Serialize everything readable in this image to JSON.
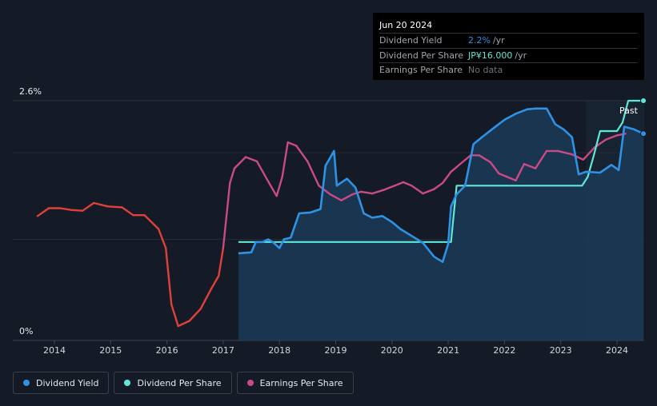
{
  "tooltip": {
    "date": "Jun 20 2024",
    "rows": [
      {
        "label": "Dividend Yield",
        "value": "2.2%",
        "unit": "/yr"
      },
      {
        "label": "Dividend Per Share",
        "value": "JP¥16.000",
        "unit": "/yr"
      },
      {
        "label": "Earnings Per Share",
        "value": "No data",
        "unit": ""
      }
    ]
  },
  "legend": [
    {
      "label": "Dividend Yield",
      "color": "#2e93e6"
    },
    {
      "label": "Dividend Per Share",
      "color": "#5ee8d8"
    },
    {
      "label": "Earnings Per Share",
      "color": "#c94a86"
    }
  ],
  "chart_data": {
    "type": "line",
    "title": "",
    "y_tick_labels": [
      "2.6%",
      "0%"
    ],
    "x_ticks": [
      2014,
      2015,
      2016,
      2017,
      2018,
      2019,
      2020,
      2021,
      2022,
      2023,
      2024
    ],
    "xlim": [
      2013.3,
      2024.47
    ],
    "ylim": [
      0,
      2.6
    ],
    "past_label": "Past",
    "past_start": 2023.45,
    "colors": {
      "yield": "#2e93e6",
      "dps": "#5ee8d8",
      "eps_up": "#c94a86",
      "eps_down": "#e0403c",
      "grid": "#2d333d",
      "axis": "#3f4650",
      "area": "#1b3a57"
    },
    "series": [
      {
        "name": "Dividend Yield",
        "unit": "%",
        "points": [
          [
            2017.27,
            0.84
          ],
          [
            2017.5,
            0.85
          ],
          [
            2017.58,
            0.97
          ],
          [
            2017.7,
            0.97
          ],
          [
            2017.8,
            1.0
          ],
          [
            2017.9,
            0.96
          ],
          [
            2018.0,
            0.9
          ],
          [
            2018.08,
            1.0
          ],
          [
            2018.2,
            1.02
          ],
          [
            2018.35,
            1.3
          ],
          [
            2018.55,
            1.31
          ],
          [
            2018.73,
            1.35
          ],
          [
            2018.82,
            1.85
          ],
          [
            2018.97,
            2.02
          ],
          [
            2019.02,
            1.62
          ],
          [
            2019.2,
            1.7
          ],
          [
            2019.35,
            1.6
          ],
          [
            2019.5,
            1.3
          ],
          [
            2019.65,
            1.25
          ],
          [
            2019.83,
            1.27
          ],
          [
            2020.0,
            1.2
          ],
          [
            2020.15,
            1.12
          ],
          [
            2020.35,
            1.04
          ],
          [
            2020.55,
            0.96
          ],
          [
            2020.75,
            0.8
          ],
          [
            2020.9,
            0.74
          ],
          [
            2021.0,
            0.95
          ],
          [
            2021.05,
            1.38
          ],
          [
            2021.15,
            1.52
          ],
          [
            2021.3,
            1.62
          ],
          [
            2021.45,
            2.1
          ],
          [
            2021.6,
            2.18
          ],
          [
            2021.8,
            2.28
          ],
          [
            2022.0,
            2.38
          ],
          [
            2022.2,
            2.45
          ],
          [
            2022.4,
            2.5
          ],
          [
            2022.55,
            2.51
          ],
          [
            2022.75,
            2.51
          ],
          [
            2022.9,
            2.33
          ],
          [
            2023.05,
            2.27
          ],
          [
            2023.2,
            2.18
          ],
          [
            2023.32,
            1.75
          ],
          [
            2023.45,
            1.78
          ],
          [
            2023.7,
            1.77
          ],
          [
            2023.9,
            1.86
          ],
          [
            2024.03,
            1.8
          ],
          [
            2024.13,
            2.3
          ],
          [
            2024.3,
            2.27
          ],
          [
            2024.47,
            2.22
          ]
        ]
      },
      {
        "name": "Dividend Per Share",
        "unit": "JP¥",
        "points": [
          [
            2017.27,
            0.97
          ],
          [
            2020.05,
            0.97
          ],
          [
            2020.1,
            0.97
          ],
          [
            2021.05,
            0.97
          ],
          [
            2021.15,
            1.62
          ],
          [
            2021.5,
            1.62
          ],
          [
            2022.0,
            1.62
          ],
          [
            2022.5,
            1.62
          ],
          [
            2023.0,
            1.62
          ],
          [
            2023.38,
            1.62
          ],
          [
            2023.48,
            1.72
          ],
          [
            2023.58,
            1.95
          ],
          [
            2023.7,
            2.25
          ],
          [
            2023.82,
            2.25
          ],
          [
            2024.0,
            2.25
          ],
          [
            2024.1,
            2.35
          ],
          [
            2024.2,
            2.6
          ],
          [
            2024.47,
            2.6
          ]
        ]
      },
      {
        "name": "Earnings Per Share",
        "unit": "JP¥",
        "points": [
          [
            2013.7,
            1.27
          ],
          [
            2013.9,
            1.36
          ],
          [
            2014.1,
            1.36
          ],
          [
            2014.3,
            1.34
          ],
          [
            2014.5,
            1.33
          ],
          [
            2014.7,
            1.42
          ],
          [
            2014.95,
            1.38
          ],
          [
            2015.2,
            1.37
          ],
          [
            2015.4,
            1.28
          ],
          [
            2015.6,
            1.28
          ],
          [
            2015.85,
            1.12
          ],
          [
            2015.98,
            0.9
          ],
          [
            2016.08,
            0.25
          ],
          [
            2016.2,
            0.0
          ],
          [
            2016.4,
            0.06
          ],
          [
            2016.6,
            0.2
          ],
          [
            2016.78,
            0.42
          ],
          [
            2016.92,
            0.58
          ],
          [
            2017.0,
            0.9
          ],
          [
            2017.12,
            1.65
          ],
          [
            2017.2,
            1.82
          ],
          [
            2017.4,
            1.95
          ],
          [
            2017.6,
            1.9
          ],
          [
            2017.8,
            1.67
          ],
          [
            2017.95,
            1.5
          ],
          [
            2018.05,
            1.72
          ],
          [
            2018.15,
            2.12
          ],
          [
            2018.3,
            2.08
          ],
          [
            2018.5,
            1.9
          ],
          [
            2018.7,
            1.62
          ],
          [
            2018.9,
            1.52
          ],
          [
            2019.1,
            1.45
          ],
          [
            2019.3,
            1.52
          ],
          [
            2019.45,
            1.55
          ],
          [
            2019.65,
            1.53
          ],
          [
            2019.85,
            1.57
          ],
          [
            2020.05,
            1.62
          ],
          [
            2020.2,
            1.66
          ],
          [
            2020.35,
            1.62
          ],
          [
            2020.55,
            1.53
          ],
          [
            2020.75,
            1.58
          ],
          [
            2020.9,
            1.65
          ],
          [
            2021.05,
            1.78
          ],
          [
            2021.25,
            1.89
          ],
          [
            2021.4,
            1.97
          ],
          [
            2021.55,
            1.97
          ],
          [
            2021.75,
            1.89
          ],
          [
            2021.9,
            1.76
          ],
          [
            2022.05,
            1.72
          ],
          [
            2022.2,
            1.68
          ],
          [
            2022.35,
            1.87
          ],
          [
            2022.55,
            1.82
          ],
          [
            2022.75,
            2.02
          ],
          [
            2022.95,
            2.02
          ],
          [
            2023.2,
            1.98
          ],
          [
            2023.4,
            1.92
          ],
          [
            2023.6,
            2.06
          ],
          [
            2023.8,
            2.15
          ],
          [
            2024.0,
            2.2
          ],
          [
            2024.15,
            2.22
          ]
        ]
      }
    ]
  }
}
